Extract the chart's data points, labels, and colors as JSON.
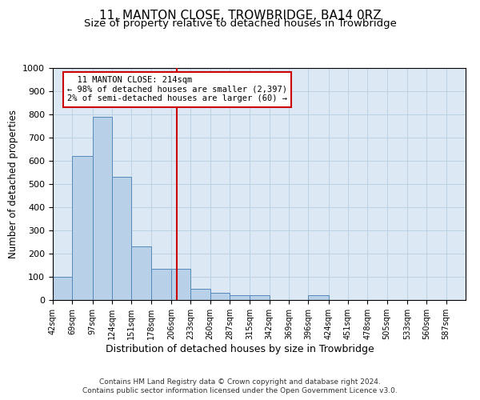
{
  "title": "11, MANTON CLOSE, TROWBRIDGE, BA14 0RZ",
  "subtitle": "Size of property relative to detached houses in Trowbridge",
  "xlabel": "Distribution of detached houses by size in Trowbridge",
  "ylabel": "Number of detached properties",
  "footer_line1": "Contains HM Land Registry data © Crown copyright and database right 2024.",
  "footer_line2": "Contains public sector information licensed under the Open Government Licence v3.0.",
  "annotation_title": "11 MANTON CLOSE: 214sqm",
  "annotation_line1": "← 98% of detached houses are smaller (2,397)",
  "annotation_line2": "2% of semi-detached houses are larger (60) →",
  "property_size": 214,
  "bar_edges": [
    42,
    69,
    97,
    124,
    151,
    178,
    206,
    233,
    260,
    287,
    315,
    342,
    369,
    396,
    424,
    451,
    478,
    505,
    533,
    560,
    587
  ],
  "bar_heights": [
    100,
    620,
    790,
    530,
    230,
    135,
    135,
    50,
    30,
    20,
    20,
    0,
    0,
    20,
    0,
    0,
    0,
    0,
    0,
    0,
    0
  ],
  "bar_color": "#b8d0e8",
  "bar_edge_color": "#5588bb",
  "vline_color": "#cc0000",
  "annotation_box_color": "#cc0000",
  "grid_color": "#b8cfe0",
  "background_color": "#dce9f5",
  "ylim": [
    0,
    1000
  ],
  "yticks": [
    0,
    100,
    200,
    300,
    400,
    500,
    600,
    700,
    800,
    900,
    1000
  ],
  "title_fontsize": 11,
  "subtitle_fontsize": 9.5,
  "ylabel_fontsize": 8.5,
  "xlabel_fontsize": 9
}
